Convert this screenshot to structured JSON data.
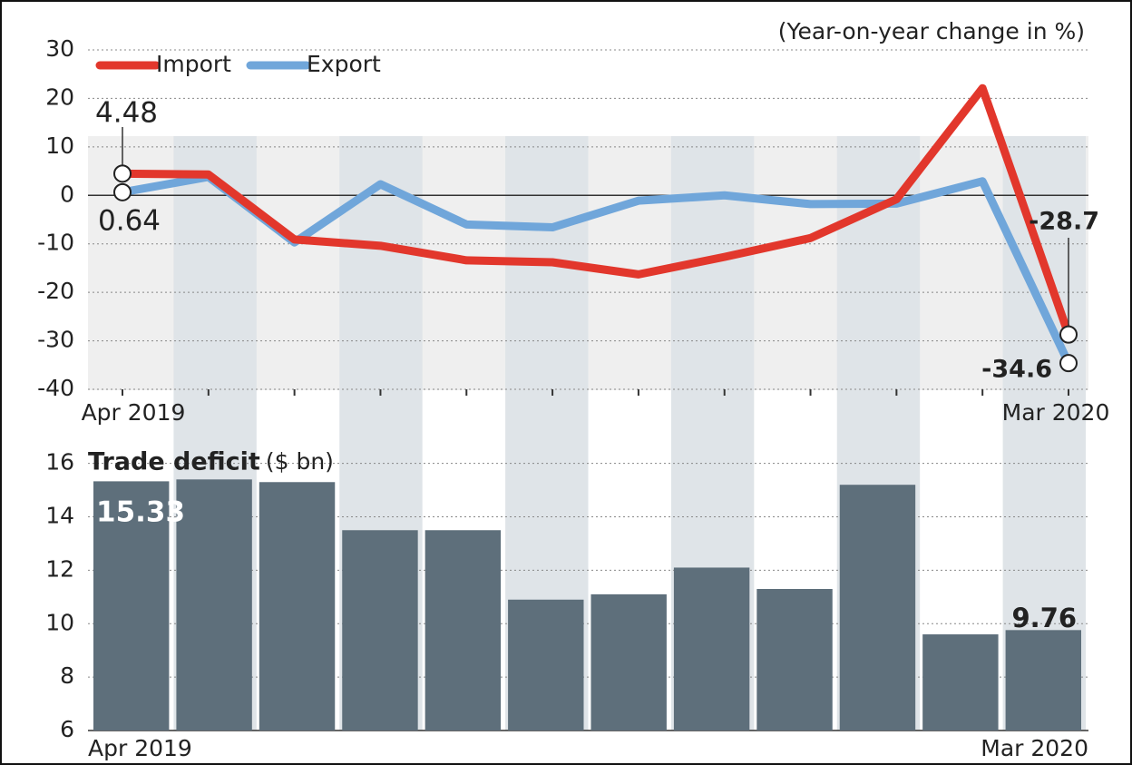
{
  "chart_data": [
    {
      "type": "line",
      "subtitle": "(Year-on-year change in %)",
      "categories": [
        "Apr 2019",
        null,
        null,
        null,
        null,
        null,
        null,
        null,
        null,
        null,
        null,
        "Mar 2020"
      ],
      "series": [
        {
          "name": "Import",
          "color": "#e2372c",
          "values": [
            4.48,
            4.3,
            -9.1,
            -10.4,
            -13.4,
            -13.8,
            -16.3,
            -12.7,
            -8.8,
            -0.8,
            22.1,
            -28.7
          ]
        },
        {
          "name": "Export",
          "color": "#70a6da",
          "values": [
            0.64,
            3.8,
            -9.7,
            2.3,
            -6.0,
            -6.6,
            -1.1,
            0.0,
            -1.8,
            -1.7,
            2.9,
            -34.6
          ]
        }
      ],
      "ylim": [
        -40,
        30
      ],
      "yticks": [
        -40,
        -30,
        -20,
        -10,
        0,
        10,
        20,
        30
      ],
      "grid": true,
      "legend": "top-left"
    },
    {
      "type": "bar",
      "title": "Trade deficit",
      "subtitle": "($ bn)",
      "categories": [
        "Apr 2019",
        null,
        null,
        null,
        null,
        null,
        null,
        null,
        null,
        null,
        null,
        "Mar 2020"
      ],
      "values": [
        15.33,
        15.4,
        15.3,
        13.5,
        13.5,
        10.9,
        11.1,
        12.1,
        11.3,
        15.2,
        9.6,
        9.76
      ],
      "color": "#5e6f7b",
      "ylim": [
        6,
        16.6
      ],
      "yticks": [
        6,
        8,
        10,
        12,
        14,
        16
      ],
      "grid": true
    }
  ]
}
